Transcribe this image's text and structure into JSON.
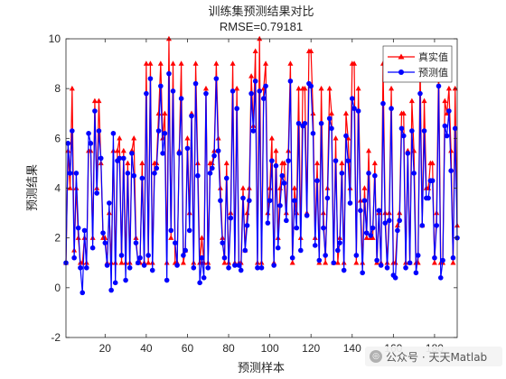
{
  "chart_data": {
    "type": "line",
    "title": "训练集预测结果对比",
    "subtitle": "RMSE=0.79181",
    "xlabel": "预测样本",
    "ylabel": "预测结果",
    "xlim": [
      1,
      191
    ],
    "ylim": [
      -2,
      10
    ],
    "xticks": [
      20,
      40,
      60,
      80,
      100,
      120,
      140,
      160,
      180
    ],
    "yticks": [
      -2,
      0,
      2,
      4,
      6,
      8,
      10
    ],
    "grid": false,
    "legend_position": "top-right",
    "x": [
      1,
      2,
      3,
      4,
      5,
      6,
      7,
      8,
      9,
      10,
      11,
      12,
      13,
      14,
      15,
      16,
      17,
      18,
      19,
      20,
      21,
      22,
      23,
      24,
      25,
      26,
      27,
      28,
      29,
      30,
      31,
      32,
      33,
      34,
      35,
      36,
      37,
      38,
      39,
      40,
      41,
      42,
      43,
      44,
      45,
      46,
      47,
      48,
      49,
      50,
      51,
      52,
      53,
      54,
      55,
      56,
      57,
      58,
      59,
      60,
      61,
      62,
      63,
      64,
      65,
      66,
      67,
      68,
      69,
      70,
      71,
      72,
      73,
      74,
      75,
      76,
      77,
      78,
      79,
      80,
      81,
      82,
      83,
      84,
      85,
      86,
      87,
      88,
      89,
      90,
      91,
      92,
      93,
      94,
      95,
      96,
      97,
      98,
      99,
      100,
      101,
      102,
      103,
      104,
      105,
      106,
      107,
      108,
      109,
      110,
      111,
      112,
      113,
      114,
      115,
      116,
      117,
      118,
      119,
      120,
      121,
      122,
      123,
      124,
      125,
      126,
      127,
      128,
      129,
      130,
      131,
      132,
      133,
      134,
      135,
      136,
      137,
      138,
      139,
      140,
      141,
      142,
      143,
      144,
      145,
      146,
      147,
      148,
      149,
      150,
      151,
      152,
      153,
      154,
      155,
      156,
      157,
      158,
      159,
      160,
      161,
      162,
      163,
      164,
      165,
      166,
      167,
      168,
      169,
      170,
      171,
      172,
      173,
      174,
      175,
      176,
      177,
      178,
      179,
      180,
      181,
      182,
      183,
      184,
      185,
      186,
      187,
      188,
      189,
      190,
      191
    ],
    "series": [
      {
        "name": "真实值",
        "color": "#ff0000",
        "marker": "triangle",
        "values": [
          1,
          5.5,
          4,
          8,
          1.5,
          4,
          2,
          1,
          1,
          2,
          1,
          5.5,
          5.5,
          2,
          7.5,
          4,
          7.5,
          5,
          2,
          2,
          1,
          3,
          1,
          5.5,
          1,
          5.5,
          6,
          1,
          5.5,
          1,
          5,
          1,
          5.5,
          6,
          2,
          1,
          1,
          5,
          1,
          9,
          1,
          9,
          1,
          5,
          5,
          7,
          9,
          6,
          7,
          1,
          10,
          2,
          9,
          1,
          1,
          5.5,
          9,
          1,
          1.5,
          6,
          3,
          7,
          1,
          9,
          5,
          1,
          2,
          1,
          8,
          1,
          5,
          5,
          5.5,
          9,
          6,
          4,
          2,
          1,
          5,
          1,
          3,
          9,
          1,
          8,
          1,
          1,
          4,
          1.5,
          3,
          4,
          8.5,
          6.5,
          9.5,
          1,
          10,
          1,
          8,
          9,
          3,
          4,
          6,
          1,
          5.5,
          2,
          4,
          5,
          5,
          3,
          5.5,
          9,
          1,
          4,
          3,
          8,
          2,
          8,
          8,
          3,
          9.5,
          9.5,
          7,
          2,
          5,
          1,
          8,
          3,
          1,
          4,
          8,
          7,
          1,
          6,
          1,
          2,
          5,
          1,
          7,
          6,
          4,
          9,
          9,
          1,
          8,
          3.5,
          1,
          4,
          2,
          5.5,
          2,
          2,
          5,
          1,
          3,
          1,
          9,
          3,
          1,
          3,
          8,
          1,
          1,
          2.5,
          3,
          7,
          7,
          1,
          5.5,
          1,
          7.5,
          5.5,
          1,
          1,
          9,
          2.5,
          7.5,
          4,
          4,
          5,
          5,
          1,
          3,
          9,
          1,
          1,
          7.5,
          7,
          8,
          5.5,
          1,
          8,
          2.5
        ]
      },
      {
        "name": "预测值",
        "color": "#0000ff",
        "marker": "circle",
        "values": [
          1,
          5.8,
          4.6,
          6.3,
          1.2,
          4.6,
          2.4,
          0.8,
          -0.2,
          2.3,
          0.8,
          6.2,
          5.8,
          1.6,
          7.1,
          3.8,
          6.3,
          5.2,
          2.2,
          1.8,
          0.9,
          3.4,
          -0.1,
          6.2,
          0.2,
          5.1,
          5.2,
          1.3,
          5.2,
          0.3,
          4.6,
          0.8,
          5.4,
          4.5,
          1.8,
          1,
          1.2,
          4.4,
          0.9,
          7.8,
          1.3,
          8.4,
          0.7,
          4.6,
          4.8,
          6.3,
          8.1,
          5.4,
          6.2,
          0.3,
          8.6,
          2.3,
          7.9,
          1.8,
          0.9,
          5.4,
          7.6,
          1.3,
          1.5,
          5.6,
          2.3,
          6.9,
          0.8,
          8.2,
          4.5,
          0.2,
          1.2,
          0.4,
          7.8,
          0.8,
          4.6,
          4.8,
          5.3,
          8.4,
          5.5,
          3.5,
          1.8,
          1.2,
          4.4,
          0.8,
          2.8,
          7.9,
          0.9,
          7.2,
          0.9,
          0.7,
          3.6,
          1.5,
          2.5,
          3.5,
          7.8,
          6.3,
          8.3,
          0.8,
          7.9,
          0.8,
          7.6,
          8.1,
          2.6,
          3.5,
          5.1,
          0.9,
          4.9,
          1.6,
          3.3,
          4.5,
          4.2,
          2.7,
          5.1,
          8.3,
          1.2,
          3.5,
          2.4,
          6.6,
          1.5,
          6.5,
          6.6,
          2.9,
          8.2,
          8.1,
          6.2,
          1.7,
          4.3,
          1.1,
          6.6,
          2.4,
          1.3,
          3.6,
          6.8,
          6.4,
          1,
          5.1,
          1.5,
          1.8,
          4.6,
          0.7,
          6.1,
          5.1,
          3.4,
          7.6,
          7.2,
          1.3,
          7.1,
          3.1,
          0.6,
          3.5,
          2.2,
          4.6,
          2.1,
          2.4,
          4.5,
          1.1,
          3.1,
          0.9,
          7.4,
          2.6,
          0.8,
          2.7,
          7.2,
          0.5,
          0.4,
          2.3,
          2.7,
          6.4,
          6.1,
          0.8,
          5.4,
          1,
          6.3,
          4.6,
          0.6,
          1.3,
          7.8,
          2.5,
          6.3,
          3.6,
          3.6,
          4.3,
          4.3,
          1.2,
          2.5,
          8.1,
          0.4,
          1.1,
          6.5,
          6.1,
          7.1,
          4.7,
          1.2,
          6.4,
          2
        ]
      }
    ]
  },
  "watermark": {
    "logo_glyph": "◎",
    "text": "公众号 · 天天Matlab"
  }
}
